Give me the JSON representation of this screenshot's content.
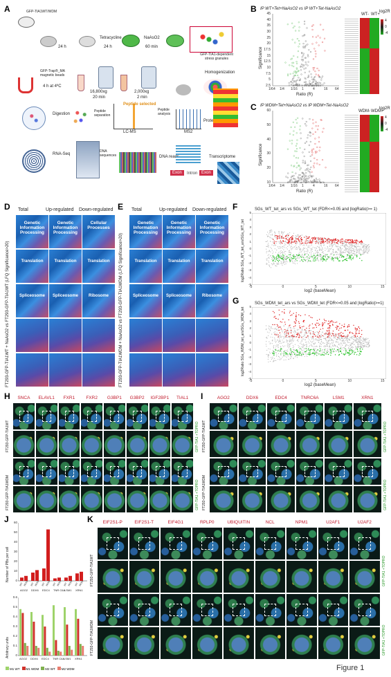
{
  "panels": {
    "A": "A",
    "B": "B",
    "C": "C",
    "D": "D",
    "E": "E",
    "F": "F",
    "G": "G",
    "H": "H",
    "I": "I",
    "J": "J",
    "K": "K"
  },
  "figure_label": "Figure 1",
  "panel_a": {
    "construct": "GFP-TIA1WT/WDM",
    "t1": "24 h",
    "t2": "Tetracycline",
    "t2b": "24 h",
    "t3": "NaAsO2",
    "t3b": "60 min",
    "granules": "GFP-TIA1-dependent stress granules",
    "homog": "Homogenization",
    "cent1": "2,000xg",
    "cent1b": "2 min",
    "cent2": "16,800xg",
    "cent2b": "20 min",
    "beads": "GFP-Trap®_MA magnetic beads",
    "beads_t": "4 h at 4ºC",
    "digestion": "Digestion",
    "pep_sep": "Peptide separation",
    "pep_sel": "Peptide selected",
    "lcms": "LC-MS",
    "pep_an": "Peptide analysis",
    "ms2": "MS2",
    "proteome": "Proteome",
    "rnaseq": "RNA-Seq",
    "dnaseq": "DNA sequences",
    "dnareads": "DNA reads",
    "exon1": "Exon",
    "intron": "Intron",
    "exon2": "Exon",
    "transcriptome": "Transcriptome"
  },
  "panel_b": {
    "title": "IP WT+Tet+NaAsO2 vs IP WT+Tet-NaAsO2",
    "ylabel": "Significance",
    "xlabel": "Ratio (R)",
    "xticks": [
      "1/64",
      "1/4",
      "1/16",
      "1",
      "4",
      "16",
      "64"
    ],
    "yticks": [
      "45",
      "40",
      "35",
      "30",
      "25",
      "20",
      "17.5",
      "15",
      "12.5",
      "10",
      "7.5",
      "5",
      "2.5"
    ],
    "heat_labels": [
      "WT-",
      "WT+"
    ],
    "scale_label": "log2R",
    "scale_ticks": [
      "4",
      "0",
      "-4"
    ]
  },
  "panel_c": {
    "title": "IP WDM+Tet+NaAsO2 vs IP WDM+Tet-NaAsO2",
    "ylabel": "Significance",
    "xlabel": "Ratio (R)",
    "xticks": [
      "1/64",
      "1/4",
      "1/16",
      "1",
      "4",
      "16",
      "64"
    ],
    "yticks": [
      "60",
      "50",
      "40",
      "30",
      "20",
      "10"
    ],
    "heat_labels": [
      "WDM-",
      "WDM+"
    ],
    "scale_label": "log2R",
    "scale_ticks": [
      "4",
      "0",
      "-4"
    ]
  },
  "panel_d": {
    "cols": [
      "Total",
      "Up-regulated",
      "Down-regulated"
    ],
    "side": "FT293-GFP-TIA1WT + NaAsO2 vs FT293-GFP-TIA1WT (LFQ Significance>20)",
    "rows": [
      [
        "Genetic Information Processing",
        "Genetic Information Processing",
        "Cellular Processes"
      ],
      [
        "Translation",
        "Translation",
        "Translation"
      ],
      [
        "Spliceosome",
        "Spliceosome",
        "Ribosome"
      ],
      [
        "",
        "",
        ""
      ],
      [
        "",
        "",
        ""
      ]
    ]
  },
  "panel_e": {
    "cols": [
      "Total",
      "Up-regulated",
      "Down-regulated"
    ],
    "side": "FT293-GFP-TIA1WDM + NaAsO2 vs FT293-GFP-TIA1WDM (LFQ Significance>20)",
    "rows": [
      [
        "Genetic Information Processing",
        "Genetic Information Processing",
        "Genetic Information Processing"
      ],
      [
        "Translation",
        "Translation",
        "Translation"
      ],
      [
        "Spliceosome",
        "Spliceosome",
        "Ribosome"
      ],
      [
        "",
        "",
        ""
      ],
      [
        "",
        "",
        ""
      ]
    ]
  },
  "panel_f": {
    "title": "SGs_WT_tet_ars vs SGs_WT_tet (FDR<=0.05 and |logRatio|>= 1)",
    "ylabel": "log2Ratio SGs_WT_tet_ars/SGs_WT_tet",
    "xlabel": "log2 (baseMean)",
    "xticks": [
      "-5",
      "0",
      "5",
      "10",
      "15"
    ],
    "yticks": [
      "5",
      "4",
      "3",
      "2",
      "1",
      "0",
      "-1",
      "-2",
      "-3",
      "-4",
      "-5"
    ]
  },
  "panel_g": {
    "title": "SGs_WDM_tet_ars vs SGs_WDM_tet (FDR<=0.05 and |logRatio|>=1)",
    "ylabel": "log2Ratio SGs_WDM_tet_ars/SGs_WDM_tet",
    "xlabel": "log2 (baseMean)",
    "xticks": [
      "-5",
      "0",
      "5",
      "10",
      "15"
    ],
    "yticks": [
      "5",
      "4",
      "3",
      "2",
      "1",
      "0",
      "-1",
      "-2",
      "-3",
      "-4",
      "-5"
    ]
  },
  "panel_h": {
    "markers": [
      "SNCA",
      "ELAVL1",
      "FXR1",
      "FXR2",
      "G3BP1",
      "G3BP2",
      "IGF2BP1",
      "TIAL1"
    ],
    "rows": [
      "FT293-GFP-TIA1WT",
      "FT293-GFP-TIA1WDM"
    ],
    "right": [
      "GFP-TIA1 +TOPRO",
      "GFP-TIA1 +TOPRO"
    ]
  },
  "panel_i": {
    "markers": [
      "AGO2",
      "DDX6",
      "EDC4",
      "TNRC6A",
      "LSM1",
      "XRN1"
    ],
    "rows": [
      "FT293-GFP-TIA1WT",
      "FT293-GFP-TIA1WDM"
    ],
    "right": [
      "GFP-TIA1 +TOPRO",
      "GFP-TIA1 +TOPRO"
    ]
  },
  "panel_k": {
    "markers": [
      "EIF2S1-P",
      "EIF2S1-T",
      "EIF4G1",
      "RPLP0",
      "UBIQUITIN",
      "NCL",
      "NPM1",
      "U2AF1",
      "U2AF2"
    ],
    "rows": [
      "FT293-GFP-TIA1WT",
      "FT293-GFP-TIA1WDM"
    ],
    "right": [
      "GFP-TIA1 +TOPRO",
      "GFP-TIA1 +TOPRO"
    ]
  },
  "chart_data": [
    {
      "type": "bar",
      "panel": "J-top",
      "ylabel": "Number of PBs per cell",
      "categories": [
        "AGO2",
        "DDX6",
        "EDC4",
        "TNRC6A",
        "LSM1",
        "XRN1"
      ],
      "cat_labels": [
        "AGO2",
        "DDX6",
        "EDC4",
        "TNR C6A",
        "LSM1",
        "XRN1"
      ],
      "bar_labels": [
        "WT",
        "WDM",
        "WT",
        "WDM",
        "WT",
        "WDM",
        "WT",
        "WDM",
        "WT",
        "WDM",
        "WT",
        "WDM"
      ],
      "series": [
        {
          "name": "WT",
          "values": [
            4,
            10,
            15,
            3,
            4,
            9
          ]
        },
        {
          "name": "WDM",
          "values": [
            6,
            13,
            62,
            4,
            6,
            11
          ]
        }
      ],
      "ylim": [
        0,
        70
      ],
      "yticks": [
        "60",
        "50",
        "40",
        "30",
        "20",
        "10",
        "0"
      ]
    },
    {
      "type": "bar",
      "panel": "J-bottom",
      "ylabel": "Arbitrary units",
      "categories": [
        "AGO2",
        "DDX6",
        "EDC4",
        "TNRC6A",
        "LSM1",
        "XRN1"
      ],
      "cat_labels": [
        "AGO2",
        "DDX6",
        "EDC4",
        "TNR C6A",
        "LSM1",
        "XRN1"
      ],
      "series": [
        {
          "name": "M1 WT",
          "values": [
            0.48,
            0.45,
            0.42,
            0.52,
            0.5,
            0.48
          ]
        },
        {
          "name": "M1 WDM",
          "values": [
            0.44,
            0.35,
            0.3,
            0.16,
            0.32,
            0.38
          ]
        },
        {
          "name": "M2 WT",
          "values": [
            0.13,
            0.1,
            0.08,
            0.05,
            0.1,
            0.12
          ]
        },
        {
          "name": "M2 WDM",
          "values": [
            0.1,
            0.08,
            0.04,
            0.04,
            0.06,
            0.1
          ]
        }
      ],
      "ylim": [
        0,
        0.6
      ],
      "yticks": [
        "0.6",
        "0.5",
        "0.4",
        "0.3",
        "0.2",
        "0.1",
        "0"
      ],
      "legend": "bottom",
      "colors": [
        "#9ed36a",
        "#d0322a",
        "#7fb04e",
        "#e87c6e"
      ]
    }
  ]
}
